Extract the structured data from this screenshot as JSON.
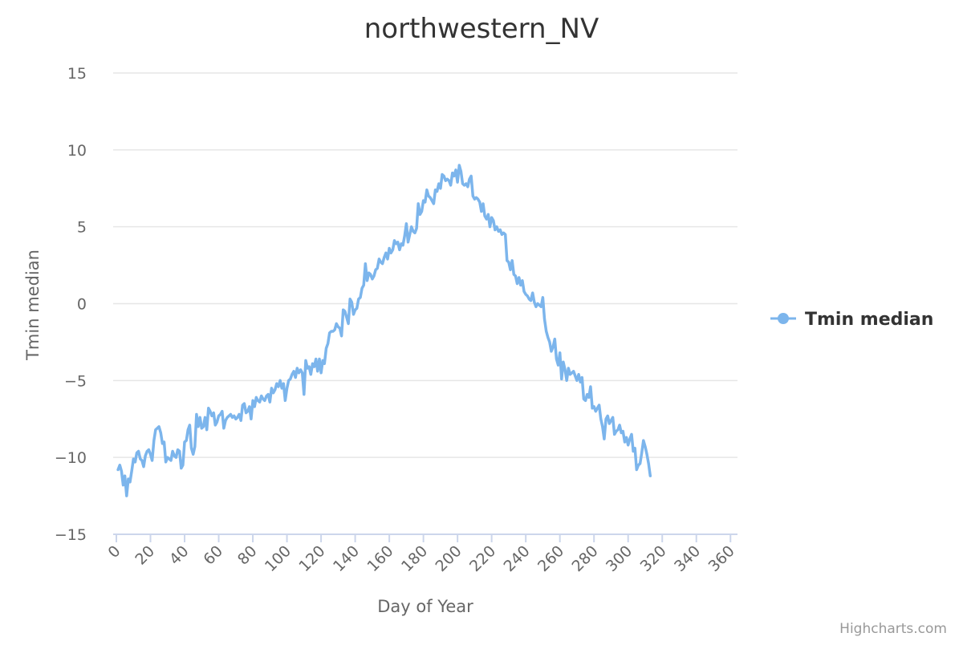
{
  "chart_data": {
    "type": "line",
    "title": "northwestern_NV",
    "xlabel": "Day of Year",
    "ylabel": "Tmin median",
    "xlim": [
      0,
      366
    ],
    "ylim": [
      -15,
      15
    ],
    "xticks": [
      0,
      20,
      40,
      60,
      80,
      100,
      120,
      140,
      160,
      180,
      200,
      220,
      240,
      260,
      280,
      300,
      320,
      340,
      360
    ],
    "yticks": [
      -15,
      -10,
      -5,
      0,
      5,
      10,
      15
    ],
    "xtick_labels": [
      "0",
      "20",
      "40",
      "60",
      "80",
      "100",
      "120",
      "140",
      "160",
      "180",
      "200",
      "220",
      "240",
      "260",
      "280",
      "300",
      "320",
      "340",
      "360"
    ],
    "ytick_labels": [
      "−15",
      "−10",
      "−5",
      "0",
      "5",
      "10",
      "15"
    ],
    "grid": true,
    "legend_position": "right",
    "series": [
      {
        "name": "Tmin median",
        "color": "#7cb5ec",
        "points": [
          [
            1,
            -10.8
          ],
          [
            2,
            -10.5
          ],
          [
            3,
            -10.9
          ],
          [
            4,
            -11.8
          ],
          [
            5,
            -11.2
          ],
          [
            6,
            -12.5
          ],
          [
            7,
            -11.4
          ],
          [
            8,
            -11.6
          ],
          [
            9,
            -10.9
          ],
          [
            10,
            -10.1
          ],
          [
            11,
            -10.3
          ],
          [
            12,
            -9.7
          ],
          [
            13,
            -9.6
          ],
          [
            14,
            -10.1
          ],
          [
            15,
            -10.2
          ],
          [
            16,
            -10.6
          ],
          [
            17,
            -9.9
          ],
          [
            18,
            -9.6
          ],
          [
            19,
            -9.5
          ],
          [
            20,
            -9.8
          ],
          [
            21,
            -10.2
          ],
          [
            22,
            -8.9
          ],
          [
            23,
            -8.2
          ],
          [
            24,
            -8.1
          ],
          [
            25,
            -8.0
          ],
          [
            26,
            -8.4
          ],
          [
            27,
            -9.1
          ],
          [
            28,
            -9.0
          ],
          [
            29,
            -10.3
          ],
          [
            30,
            -10.0
          ],
          [
            31,
            -10.1
          ],
          [
            32,
            -10.2
          ],
          [
            33,
            -9.6
          ],
          [
            34,
            -9.9
          ],
          [
            35,
            -10.0
          ],
          [
            36,
            -9.5
          ],
          [
            37,
            -9.6
          ],
          [
            38,
            -10.7
          ],
          [
            39,
            -10.5
          ],
          [
            40,
            -9.0
          ],
          [
            41,
            -8.9
          ],
          [
            42,
            -8.2
          ],
          [
            43,
            -7.9
          ],
          [
            44,
            -9.4
          ],
          [
            45,
            -9.8
          ],
          [
            46,
            -9.3
          ],
          [
            47,
            -7.2
          ],
          [
            48,
            -8.0
          ],
          [
            49,
            -7.4
          ],
          [
            50,
            -8.1
          ],
          [
            51,
            -8.0
          ],
          [
            52,
            -7.4
          ],
          [
            53,
            -8.2
          ],
          [
            54,
            -6.8
          ],
          [
            55,
            -7.0
          ],
          [
            56,
            -7.3
          ],
          [
            57,
            -7.1
          ],
          [
            58,
            -7.9
          ],
          [
            59,
            -7.7
          ],
          [
            60,
            -7.3
          ],
          [
            61,
            -7.2
          ],
          [
            62,
            -7.0
          ],
          [
            63,
            -8.1
          ],
          [
            64,
            -7.6
          ],
          [
            65,
            -7.4
          ],
          [
            66,
            -7.3
          ],
          [
            67,
            -7.2
          ],
          [
            68,
            -7.4
          ],
          [
            69,
            -7.3
          ],
          [
            70,
            -7.5
          ],
          [
            71,
            -7.4
          ],
          [
            72,
            -7.2
          ],
          [
            73,
            -7.6
          ],
          [
            74,
            -6.6
          ],
          [
            75,
            -6.5
          ],
          [
            76,
            -7.1
          ],
          [
            77,
            -7.0
          ],
          [
            78,
            -6.7
          ],
          [
            79,
            -7.5
          ],
          [
            80,
            -6.3
          ],
          [
            81,
            -6.7
          ],
          [
            82,
            -6.1
          ],
          [
            83,
            -6.3
          ],
          [
            84,
            -6.4
          ],
          [
            85,
            -6.0
          ],
          [
            86,
            -6.2
          ],
          [
            87,
            -6.3
          ],
          [
            88,
            -6.0
          ],
          [
            89,
            -5.9
          ],
          [
            90,
            -6.4
          ],
          [
            91,
            -5.5
          ],
          [
            92,
            -5.8
          ],
          [
            93,
            -5.6
          ],
          [
            94,
            -5.2
          ],
          [
            95,
            -5.4
          ],
          [
            96,
            -5.0
          ],
          [
            97,
            -5.5
          ],
          [
            98,
            -5.2
          ],
          [
            99,
            -6.3
          ],
          [
            100,
            -5.5
          ],
          [
            101,
            -5.0
          ],
          [
            102,
            -4.9
          ],
          [
            103,
            -4.6
          ],
          [
            104,
            -4.4
          ],
          [
            105,
            -4.8
          ],
          [
            106,
            -4.2
          ],
          [
            107,
            -4.5
          ],
          [
            108,
            -4.3
          ],
          [
            109,
            -4.5
          ],
          [
            110,
            -5.9
          ],
          [
            111,
            -3.7
          ],
          [
            112,
            -4.2
          ],
          [
            113,
            -4.1
          ],
          [
            114,
            -4.6
          ],
          [
            115,
            -3.9
          ],
          [
            116,
            -4.1
          ],
          [
            117,
            -3.6
          ],
          [
            118,
            -4.4
          ],
          [
            119,
            -3.6
          ],
          [
            120,
            -4.5
          ],
          [
            121,
            -3.7
          ],
          [
            122,
            -3.9
          ],
          [
            123,
            -2.9
          ],
          [
            124,
            -2.6
          ],
          [
            125,
            -1.9
          ],
          [
            126,
            -1.8
          ],
          [
            127,
            -1.8
          ],
          [
            128,
            -1.7
          ],
          [
            129,
            -1.3
          ],
          [
            130,
            -1.5
          ],
          [
            131,
            -1.6
          ],
          [
            132,
            -2.1
          ],
          [
            133,
            -0.4
          ],
          [
            134,
            -0.5
          ],
          [
            135,
            -0.9
          ],
          [
            136,
            -1.3
          ],
          [
            137,
            0.3
          ],
          [
            138,
            0.1
          ],
          [
            139,
            -0.7
          ],
          [
            140,
            -0.4
          ],
          [
            141,
            -0.3
          ],
          [
            142,
            0.3
          ],
          [
            143,
            0.4
          ],
          [
            144,
            1.0
          ],
          [
            145,
            1.2
          ],
          [
            146,
            2.6
          ],
          [
            147,
            1.5
          ],
          [
            148,
            2.0
          ],
          [
            149,
            1.9
          ],
          [
            150,
            1.6
          ],
          [
            151,
            1.8
          ],
          [
            152,
            2.2
          ],
          [
            153,
            2.3
          ],
          [
            154,
            2.9
          ],
          [
            155,
            2.7
          ],
          [
            156,
            2.6
          ],
          [
            157,
            3.0
          ],
          [
            158,
            3.3
          ],
          [
            159,
            2.9
          ],
          [
            160,
            3.6
          ],
          [
            161,
            3.3
          ],
          [
            162,
            3.5
          ],
          [
            163,
            4.1
          ],
          [
            164,
            3.9
          ],
          [
            165,
            4.0
          ],
          [
            166,
            3.5
          ],
          [
            167,
            3.9
          ],
          [
            168,
            3.8
          ],
          [
            169,
            4.4
          ],
          [
            170,
            5.2
          ],
          [
            171,
            4.0
          ],
          [
            172,
            4.5
          ],
          [
            173,
            5.0
          ],
          [
            174,
            4.7
          ],
          [
            175,
            4.6
          ],
          [
            176,
            4.9
          ],
          [
            177,
            6.5
          ],
          [
            178,
            5.8
          ],
          [
            179,
            6.0
          ],
          [
            180,
            6.7
          ],
          [
            181,
            6.6
          ],
          [
            182,
            7.4
          ],
          [
            183,
            7.0
          ],
          [
            184,
            6.9
          ],
          [
            185,
            6.7
          ],
          [
            186,
            6.5
          ],
          [
            187,
            7.4
          ],
          [
            188,
            7.3
          ],
          [
            189,
            7.8
          ],
          [
            190,
            7.5
          ],
          [
            191,
            8.4
          ],
          [
            192,
            8.3
          ],
          [
            193,
            8.0
          ],
          [
            194,
            8.1
          ],
          [
            195,
            8.0
          ],
          [
            196,
            7.7
          ],
          [
            197,
            8.5
          ],
          [
            198,
            8.3
          ],
          [
            199,
            8.7
          ],
          [
            200,
            7.9
          ],
          [
            201,
            9.0
          ],
          [
            202,
            8.6
          ],
          [
            203,
            7.8
          ],
          [
            204,
            7.7
          ],
          [
            205,
            7.8
          ],
          [
            206,
            7.6
          ],
          [
            207,
            8.1
          ],
          [
            208,
            8.3
          ],
          [
            209,
            7.0
          ],
          [
            210,
            6.8
          ],
          [
            211,
            6.9
          ],
          [
            212,
            6.8
          ],
          [
            213,
            6.6
          ],
          [
            214,
            6.0
          ],
          [
            215,
            6.5
          ],
          [
            216,
            5.7
          ],
          [
            217,
            5.5
          ],
          [
            218,
            5.8
          ],
          [
            219,
            5.0
          ],
          [
            220,
            5.6
          ],
          [
            221,
            5.4
          ],
          [
            222,
            4.8
          ],
          [
            223,
            5.0
          ],
          [
            224,
            4.7
          ],
          [
            225,
            4.8
          ],
          [
            226,
            4.5
          ],
          [
            227,
            4.6
          ],
          [
            228,
            4.5
          ],
          [
            229,
            2.8
          ],
          [
            230,
            2.7
          ],
          [
            231,
            2.2
          ],
          [
            232,
            2.8
          ],
          [
            233,
            1.9
          ],
          [
            234,
            1.8
          ],
          [
            235,
            1.3
          ],
          [
            236,
            1.7
          ],
          [
            237,
            1.2
          ],
          [
            238,
            1.5
          ],
          [
            239,
            0.8
          ],
          [
            240,
            0.6
          ],
          [
            241,
            0.5
          ],
          [
            242,
            0.3
          ],
          [
            243,
            0.2
          ],
          [
            244,
            0.7
          ],
          [
            245,
            0.1
          ],
          [
            246,
            -0.2
          ],
          [
            247,
            0.0
          ],
          [
            248,
            -0.1
          ],
          [
            249,
            -0.2
          ],
          [
            250,
            0.4
          ],
          [
            251,
            -1.0
          ],
          [
            252,
            -1.8
          ],
          [
            253,
            -2.2
          ],
          [
            254,
            -2.5
          ],
          [
            255,
            -3.1
          ],
          [
            256,
            -2.8
          ],
          [
            257,
            -2.3
          ],
          [
            258,
            -3.6
          ],
          [
            259,
            -4.0
          ],
          [
            260,
            -3.2
          ],
          [
            261,
            -4.9
          ],
          [
            262,
            -3.8
          ],
          [
            263,
            -4.3
          ],
          [
            264,
            -5.0
          ],
          [
            265,
            -4.2
          ],
          [
            266,
            -4.6
          ],
          [
            267,
            -4.5
          ],
          [
            268,
            -4.4
          ],
          [
            269,
            -4.7
          ],
          [
            270,
            -5.0
          ],
          [
            271,
            -4.6
          ],
          [
            272,
            -5.1
          ],
          [
            273,
            -4.8
          ],
          [
            274,
            -6.2
          ],
          [
            275,
            -6.3
          ],
          [
            276,
            -5.9
          ],
          [
            277,
            -6.1
          ],
          [
            278,
            -5.4
          ],
          [
            279,
            -6.8
          ],
          [
            280,
            -6.7
          ],
          [
            281,
            -7.0
          ],
          [
            282,
            -6.8
          ],
          [
            283,
            -6.6
          ],
          [
            284,
            -7.5
          ],
          [
            285,
            -8.0
          ],
          [
            286,
            -8.8
          ],
          [
            287,
            -7.5
          ],
          [
            288,
            -7.3
          ],
          [
            289,
            -7.8
          ],
          [
            290,
            -7.6
          ],
          [
            291,
            -7.4
          ],
          [
            292,
            -8.5
          ],
          [
            293,
            -8.3
          ],
          [
            294,
            -8.2
          ],
          [
            295,
            -7.9
          ],
          [
            296,
            -8.4
          ],
          [
            297,
            -8.3
          ],
          [
            298,
            -9.0
          ],
          [
            299,
            -8.7
          ],
          [
            300,
            -9.2
          ],
          [
            301,
            -8.8
          ],
          [
            302,
            -8.5
          ],
          [
            303,
            -9.6
          ],
          [
            304,
            -9.4
          ],
          [
            305,
            -10.8
          ],
          [
            306,
            -10.5
          ],
          [
            307,
            -10.4
          ],
          [
            308,
            -9.7
          ],
          [
            309,
            -8.9
          ],
          [
            310,
            -9.3
          ],
          [
            311,
            -9.8
          ],
          [
            312,
            -10.4
          ],
          [
            313,
            -11.2
          ]
        ]
      }
    ]
  },
  "legend": {
    "label": "Tmin median",
    "color": "#7cb5ec"
  },
  "credits": {
    "text": "Highcharts.com"
  }
}
